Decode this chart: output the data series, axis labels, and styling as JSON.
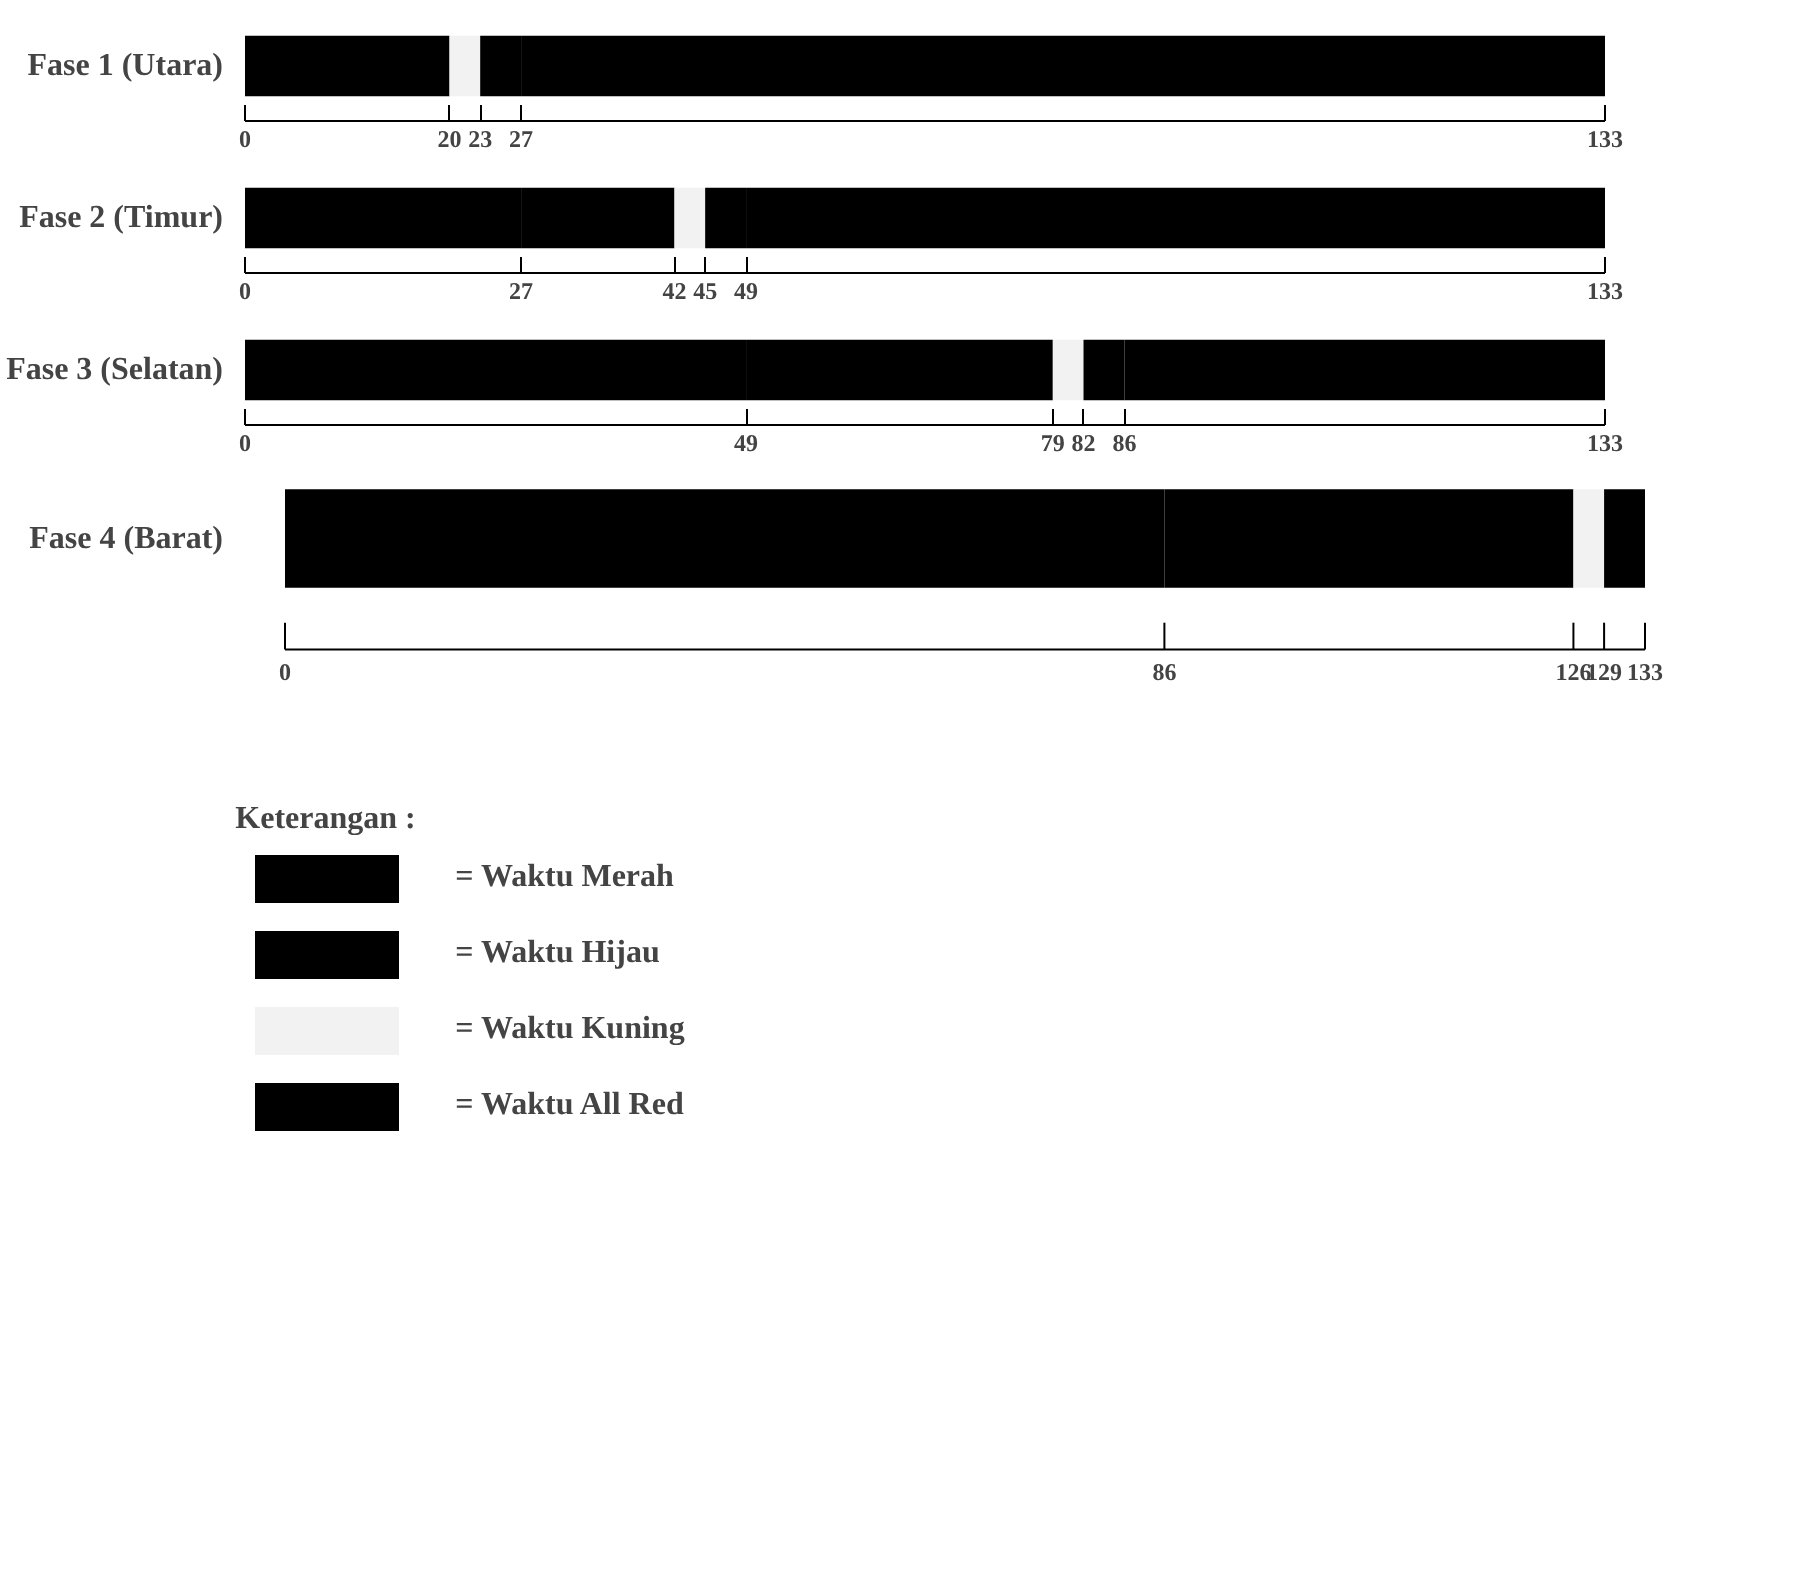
{
  "chart_data": [
    {
      "type": "bar",
      "orientation": "horizontal",
      "categories": [
        "Fase 1 (Utara)"
      ],
      "xlim": [
        0,
        133
      ],
      "xticks": [
        0,
        20,
        23,
        27,
        133
      ],
      "grid": false,
      "legend": false,
      "series": [
        {
          "color": "#000000",
          "values": [
            20
          ],
          "base": [
            0
          ]
        },
        {
          "color": "#f2f2f2",
          "values": [
            3
          ],
          "base": [
            20
          ]
        },
        {
          "color": "#000000",
          "values": [
            4
          ],
          "base": [
            23
          ]
        },
        {
          "color": "#000000",
          "values": [
            106
          ],
          "base": [
            27
          ]
        }
      ]
    },
    {
      "type": "bar",
      "orientation": "horizontal",
      "categories": [
        "Fase 2 (Timur)"
      ],
      "xlim": [
        0,
        133
      ],
      "xticks": [
        0,
        27,
        42,
        45,
        49,
        133
      ],
      "grid": false,
      "legend": false,
      "series": [
        {
          "color": "#000000",
          "values": [
            27
          ],
          "base": [
            0
          ]
        },
        {
          "color": "#000000",
          "values": [
            15
          ],
          "base": [
            27
          ]
        },
        {
          "color": "#f2f2f2",
          "values": [
            3
          ],
          "base": [
            42
          ]
        },
        {
          "color": "#000000",
          "values": [
            4
          ],
          "base": [
            45
          ]
        },
        {
          "color": "#000000",
          "values": [
            84
          ],
          "base": [
            49
          ]
        }
      ]
    },
    {
      "type": "bar",
      "orientation": "horizontal",
      "categories": [
        "Fase 3 (Selatan)"
      ],
      "xlim": [
        0,
        133
      ],
      "xticks": [
        0,
        49,
        79,
        82,
        86,
        133
      ],
      "grid": false,
      "legend": false,
      "series": [
        {
          "color": "#000000",
          "values": [
            49
          ],
          "base": [
            0
          ]
        },
        {
          "color": "#000000",
          "values": [
            30
          ],
          "base": [
            49
          ]
        },
        {
          "color": "#f2f2f2",
          "values": [
            3
          ],
          "base": [
            79
          ]
        },
        {
          "color": "#000000",
          "values": [
            4
          ],
          "base": [
            82
          ]
        },
        {
          "color": "#000000",
          "values": [
            47
          ],
          "base": [
            86
          ]
        }
      ]
    },
    {
      "type": "bar",
      "orientation": "horizontal",
      "categories": [
        "Fase 4 (Barat)"
      ],
      "xlim": [
        0,
        133
      ],
      "xticks": [
        0,
        86,
        126,
        129,
        133
      ],
      "grid": false,
      "legend": "bottom",
      "legend_title": "Keterangan :",
      "series": [
        {
          "name": "= Waktu Merah",
          "color": "#000000",
          "values": [
            86
          ],
          "base": [
            0
          ]
        },
        {
          "name": "= Waktu Hijau",
          "color": "#000000",
          "values": [
            40
          ],
          "base": [
            86
          ]
        },
        {
          "name": "= Waktu Kuning",
          "color": "#f2f2f2",
          "values": [
            3
          ],
          "base": [
            126
          ]
        },
        {
          "name": "= Waktu All Red",
          "color": "#000000",
          "values": [
            4
          ],
          "base": [
            129
          ]
        }
      ]
    }
  ]
}
